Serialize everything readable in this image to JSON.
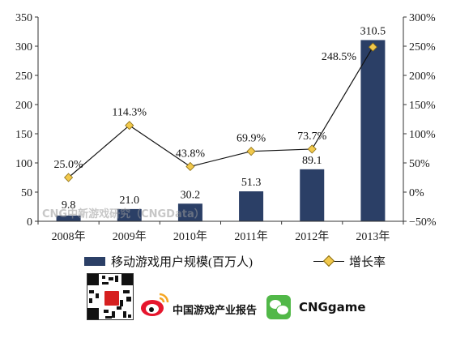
{
  "chart_data": {
    "type": "bar+line",
    "categories": [
      "2008年",
      "2009年",
      "2010年",
      "2011年",
      "2012年",
      "2013年"
    ],
    "series": [
      {
        "name": "移动游戏用户规模(百万人)",
        "type": "bar",
        "axis": "left",
        "values": [
          9.8,
          21.0,
          30.2,
          51.3,
          89.1,
          310.5
        ],
        "labels": [
          "9.8",
          "21.0",
          "30.2",
          "51.3",
          "89.1",
          "310.5"
        ]
      },
      {
        "name": "增长率",
        "type": "line",
        "axis": "right",
        "values": [
          25.0,
          114.3,
          43.8,
          69.9,
          73.7,
          248.5
        ],
        "labels": [
          "25.0%",
          "114.3%",
          "43.8%",
          "69.9%",
          "73.7%",
          "248.5%"
        ]
      }
    ],
    "ylim": [
      0,
      350
    ],
    "yticks": [
      0,
      50,
      100,
      150,
      200,
      250,
      300,
      350
    ],
    "ytick_labels": [
      "0",
      "50",
      "100",
      "150",
      "200",
      "250",
      "300",
      "350"
    ],
    "y2lim": [
      -50,
      300
    ],
    "y2ticks": [
      -50,
      0,
      50,
      100,
      150,
      200,
      250,
      300
    ],
    "y2tick_labels": [
      "−50%",
      "0%",
      "50%",
      "100%",
      "150%",
      "200%",
      "250%",
      "300%"
    ],
    "grid": false,
    "legend_position": "bottom",
    "watermark": "CNG中新游戏研究（CNGData）",
    "colors": {
      "bar": "#2b3f66",
      "line": "#111111",
      "marker": "#f2c94c"
    }
  },
  "footer": {
    "brand1": "中国游戏产业报告",
    "brand2": "CNGgame",
    "icons": [
      "qr-code-icon",
      "weibo-icon",
      "wechat-icon"
    ]
  }
}
